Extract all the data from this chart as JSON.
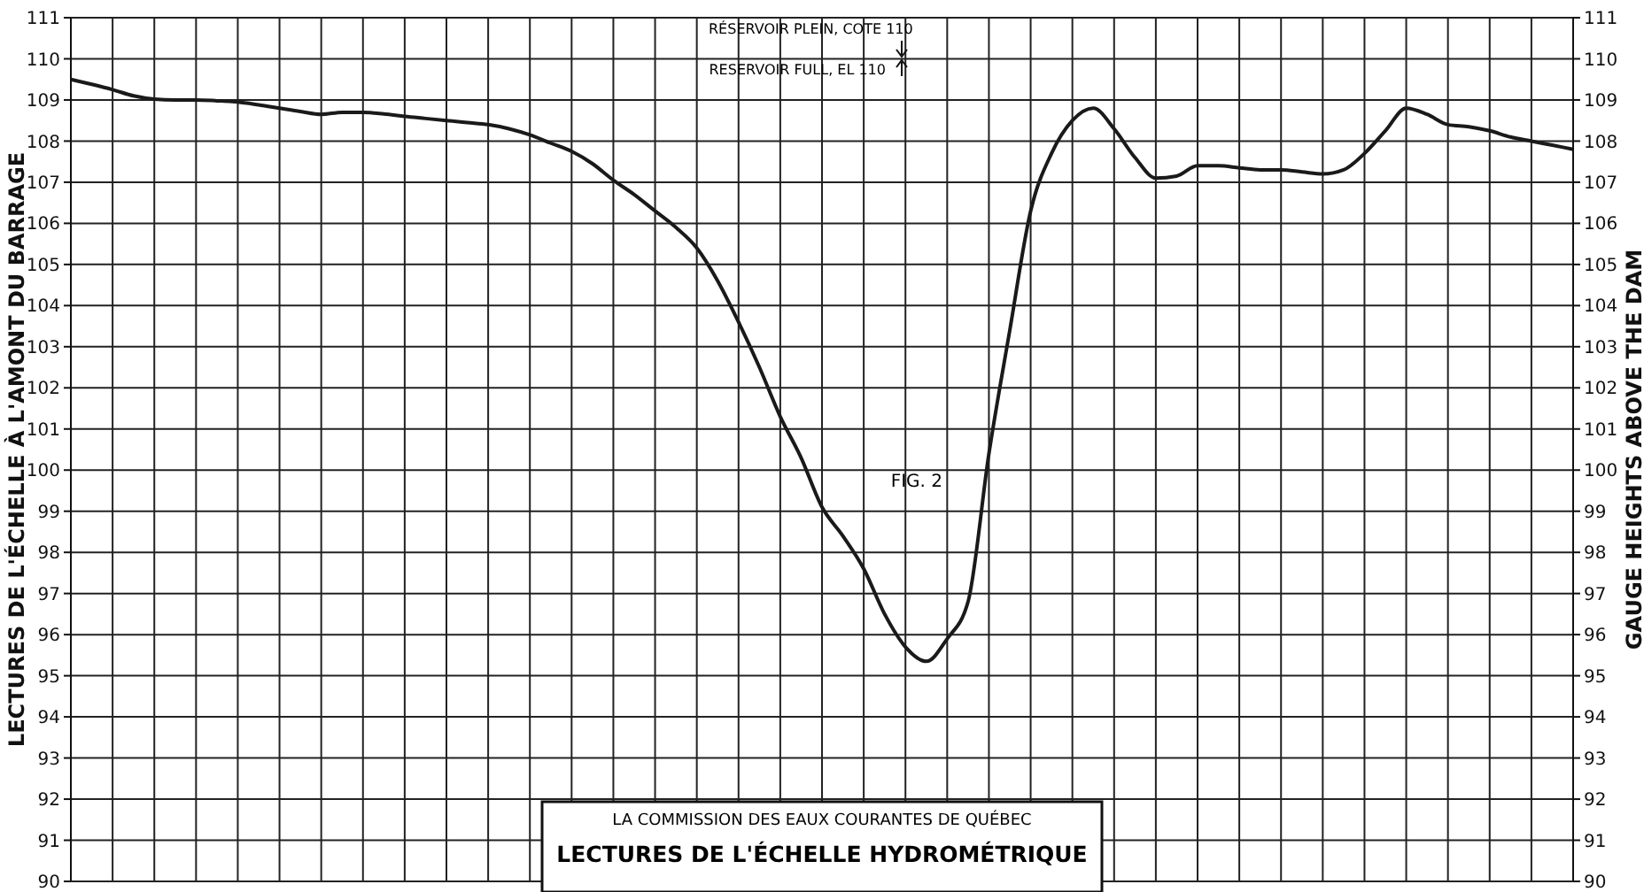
{
  "chart_data": {
    "type": "line",
    "title": "LECTURES DE L'ÉCHELLE HYDROMÉTRIQUE",
    "subtitle": "LA COMMISSION DES EAUX COURANTES DE QUÉBEC",
    "ylabel": "LECTURES DE L'ÉCHELLE À L'AMONT DU BARRAGE",
    "y2label": "GAUGE HEIGHTS ABOVE THE DAM",
    "annotations": [
      "RÉSERVOIR PLEIN, COTE 110",
      "RESERVOIR FULL, EL 110",
      "FIG. 2"
    ],
    "categories": [
      null,
      null,
      null,
      null,
      null,
      null,
      null,
      null,
      null,
      null,
      null,
      null,
      null,
      null,
      null,
      null,
      null,
      null,
      null,
      null,
      null,
      null,
      null,
      null,
      null,
      null,
      null,
      null,
      null,
      null,
      null,
      null,
      null,
      null,
      null,
      null,
      null,
      null,
      null,
      null,
      null,
      null,
      null,
      null,
      null,
      null,
      null,
      null,
      null,
      null,
      null,
      null,
      null,
      null,
      null,
      null,
      null,
      null,
      null,
      null,
      null,
      null,
      null,
      null,
      null,
      null,
      null,
      null,
      null,
      null,
      null,
      null,
      null
    ],
    "series": [
      {
        "color": "#1a1a1a",
        "values": [
          109.5,
          109.38,
          109.25,
          109.1,
          109.02,
          109.0,
          109.0,
          108.98,
          108.95,
          108.88,
          108.8,
          108.72,
          108.65,
          108.7,
          108.7,
          108.66,
          108.6,
          108.55,
          108.5,
          108.45,
          108.4,
          108.3,
          108.15,
          107.95,
          107.75,
          107.45,
          107.05,
          106.7,
          106.3,
          105.9,
          105.4,
          104.6,
          103.6,
          102.5,
          101.3,
          100.3,
          99.1,
          98.4,
          97.6,
          96.5,
          95.7,
          95.35,
          95.9,
          96.8,
          100.4,
          103.4,
          106.3,
          107.7,
          108.5,
          108.8,
          108.3,
          107.6,
          107.1,
          107.15,
          107.4,
          107.4,
          107.35,
          107.3,
          107.3,
          107.25,
          107.2,
          107.3,
          107.7,
          108.25,
          108.8,
          108.65,
          108.4,
          108.35,
          108.25,
          108.1,
          108.0,
          107.9,
          107.8
        ]
      }
    ],
    "ylim": [
      90,
      111
    ],
    "yticks": [
      90,
      91,
      92,
      93,
      94,
      95,
      96,
      97,
      98,
      99,
      100,
      101,
      102,
      103,
      104,
      105,
      106,
      107,
      108,
      109,
      110,
      111
    ],
    "y2lim": [
      90,
      111
    ],
    "y2ticks": [
      90,
      91,
      92,
      93,
      94,
      95,
      96,
      97,
      98,
      99,
      100,
      101,
      102,
      103,
      104,
      105,
      106,
      107,
      108,
      109,
      110,
      111
    ],
    "grid": true,
    "tick_labels": "y"
  }
}
